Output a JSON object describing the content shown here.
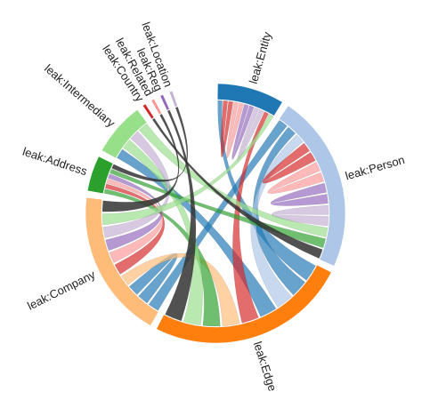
{
  "chord_diagram": {
    "groups": [
      {
        "id": "entity",
        "label": "leak:Entity",
        "color": "#1f77b4",
        "span_deg": 30
      },
      {
        "id": "person",
        "label": "leak:Person",
        "color": "#aec7e8",
        "span_deg": 80
      },
      {
        "id": "edge",
        "label": "leak:Edge",
        "color": "#ff7f0e",
        "span_deg": 90
      },
      {
        "id": "company",
        "label": "leak:Company",
        "color": "#ffbb78",
        "span_deg": 67
      },
      {
        "id": "address",
        "label": "leak:Address",
        "color": "#2ca02c",
        "span_deg": 16
      },
      {
        "id": "intermediary",
        "label": "leak:Intermediary",
        "color": "#98df8a",
        "span_deg": 24
      },
      {
        "id": "country",
        "label": "leak:Country",
        "color": "#d62728",
        "span_deg": 1.4
      },
      {
        "id": "related",
        "label": "leak:Related",
        "color": "#ff9896",
        "span_deg": 1.4
      },
      {
        "id": "reg",
        "label": "leak:Reg",
        "color": "#9467bd",
        "span_deg": 1.4
      },
      {
        "id": "location",
        "label": "leak:Location",
        "color": "#c5b0d5",
        "span_deg": 1.4
      }
    ],
    "ribbons": [
      {
        "a": "company",
        "b": "person",
        "color": "#1f77b4"
      },
      {
        "a": "edge",
        "b": "entity",
        "color": "#1f77b4"
      },
      {
        "a": "edge",
        "b": "person",
        "color": "#1f77b4"
      },
      {
        "a": "edge",
        "b": "person",
        "color": "#aec7e8"
      },
      {
        "a": "intermediary",
        "b": "edge",
        "color": "#1f77b4"
      },
      {
        "a": "entity",
        "b": "entity",
        "color": "#d62728"
      },
      {
        "a": "entity",
        "b": "entity",
        "color": "#ff9896"
      },
      {
        "a": "entity",
        "b": "entity",
        "color": "#9467bd"
      },
      {
        "a": "entity",
        "b": "entity",
        "color": "#c5b0d5"
      },
      {
        "a": "entity",
        "b": "edge",
        "color": "#d62728"
      },
      {
        "a": "person",
        "b": "person",
        "color": "#d62728"
      },
      {
        "a": "person",
        "b": "person",
        "color": "#ff9896"
      },
      {
        "a": "person",
        "b": "person",
        "color": "#9467bd"
      },
      {
        "a": "person",
        "b": "person",
        "color": "#c5b0d5"
      },
      {
        "a": "company",
        "b": "company",
        "color": "#1f77b4"
      },
      {
        "a": "edge",
        "b": "company",
        "color": "#ffbb78"
      },
      {
        "a": "edge",
        "b": "address",
        "color": "#2ca02c"
      },
      {
        "a": "edge",
        "b": "intermediary",
        "color": "#98df8a"
      },
      {
        "a": "address",
        "b": "company",
        "color": "#d62728"
      },
      {
        "a": "address",
        "b": "company",
        "color": "#ff9896"
      },
      {
        "a": "address",
        "b": "company",
        "color": "#9467bd"
      },
      {
        "a": "intermediary",
        "b": "company",
        "color": "#c5b0d5"
      },
      {
        "a": "intermediary",
        "b": "person",
        "color": "#98df8a"
      },
      {
        "a": "address",
        "b": "person",
        "color": "#2ca02c"
      },
      {
        "a": "company",
        "b": "entity",
        "color": "#98df8a"
      },
      {
        "a": "country",
        "b": "person",
        "color": "#333333"
      },
      {
        "a": "related",
        "b": "company",
        "color": "#333333"
      },
      {
        "a": "reg",
        "b": "edge",
        "color": "#333333"
      },
      {
        "a": "location",
        "b": "address",
        "color": "#333333"
      }
    ]
  }
}
